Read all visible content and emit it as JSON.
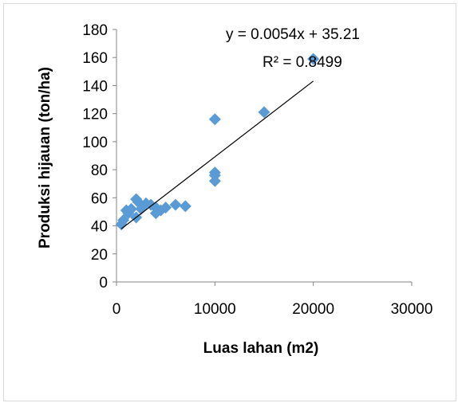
{
  "chart_data": {
    "type": "scatter",
    "xlabel": "Luas lahan (m2)",
    "ylabel": "Produksi hijauan (ton/ha)",
    "xlim": [
      0,
      30000
    ],
    "ylim": [
      0,
      180
    ],
    "x_ticks": [
      "0",
      "10000",
      "20000",
      "30000"
    ],
    "y_ticks": [
      "0",
      "20",
      "40",
      "60",
      "80",
      "100",
      "120",
      "140",
      "160",
      "180"
    ],
    "grid": false,
    "marker": "diamond",
    "marker_color": "#5b9bd5",
    "series": [
      {
        "x": [
          500,
          700,
          1000,
          1200,
          1500,
          2000,
          2000,
          2200,
          2500,
          3000,
          3500,
          4000,
          4000,
          4500,
          5000,
          6000,
          7000,
          10000,
          10000,
          10000,
          10000,
          15000,
          20000
        ],
        "y": [
          41,
          44,
          51,
          49,
          52,
          59,
          46,
          57,
          52,
          56,
          55,
          49,
          53,
          51,
          53,
          55,
          54,
          72,
          76,
          78,
          116,
          121,
          159
        ]
      }
    ],
    "trendline": {
      "type": "linear",
      "slope": 0.0054,
      "intercept": 35.21,
      "x_range": [
        500,
        20000
      ],
      "color": "#000000",
      "equation_text": "y = 0.0054x + 35.21",
      "r2_text": "R² = 0.8499"
    }
  }
}
